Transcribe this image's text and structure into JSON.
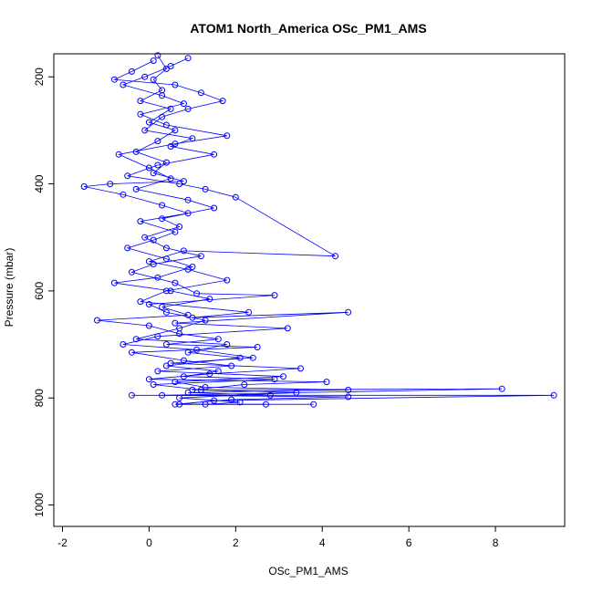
{
  "chart_data": {
    "type": "scatter",
    "title": "ATOM1 North_America OSc_PM1_AMS",
    "xlabel": "OSc_PM1_AMS",
    "ylabel": "Pressure (mbar)",
    "xlim": [
      -2.2,
      9.6
    ],
    "ylim": [
      1040,
      157
    ],
    "y_reversed": true,
    "xticks": [
      -2,
      0,
      2,
      4,
      6,
      8
    ],
    "yticks": [
      200,
      400,
      600,
      800,
      1000
    ],
    "grid": false,
    "legend": "none",
    "color": "#0000ff",
    "marker": "open-circle",
    "connected": true,
    "series": [
      {
        "points": [
          [
            0.2,
            160
          ],
          [
            0.4,
            185
          ],
          [
            0.1,
            205
          ],
          [
            0.3,
            225
          ],
          [
            -0.2,
            245
          ],
          [
            0.5,
            260
          ],
          [
            0.0,
            285
          ],
          [
            0.6,
            300
          ],
          [
            0.2,
            320
          ],
          [
            -0.3,
            340
          ],
          [
            0.4,
            360
          ],
          [
            0.1,
            380
          ],
          [
            0.8,
            395
          ],
          [
            -0.9,
            400
          ],
          [
            -1.5,
            405
          ],
          [
            -0.6,
            420
          ],
          [
            0.3,
            440
          ],
          [
            0.9,
            455
          ],
          [
            -0.2,
            470
          ],
          [
            0.6,
            490
          ],
          [
            0.1,
            505
          ],
          [
            -0.5,
            520
          ],
          [
            0.4,
            540
          ],
          [
            1.0,
            555
          ],
          [
            0.2,
            575
          ],
          [
            -0.8,
            585
          ],
          [
            0.5,
            600
          ],
          [
            1.4,
            615
          ],
          [
            0.3,
            630
          ],
          [
            0.9,
            645
          ],
          [
            -1.2,
            655
          ],
          [
            0.0,
            665
          ],
          [
            0.7,
            680
          ],
          [
            1.6,
            690
          ],
          [
            0.4,
            700
          ],
          [
            2.5,
            705
          ],
          [
            -0.4,
            715
          ],
          [
            0.8,
            730
          ],
          [
            1.9,
            740
          ],
          [
            0.2,
            750
          ],
          [
            3.1,
            760
          ],
          [
            0.6,
            770
          ],
          [
            1.3,
            780
          ],
          [
            4.6,
            785
          ],
          [
            0.9,
            790
          ],
          [
            2.8,
            795
          ],
          [
            -0.4,
            795
          ],
          [
            9.35,
            795
          ],
          [
            1.5,
            805
          ],
          [
            0.7,
            812
          ],
          [
            3.8,
            812
          ]
        ]
      },
      {
        "points": [
          [
            0.1,
            170
          ],
          [
            -0.4,
            190
          ],
          [
            -0.8,
            205
          ],
          [
            0.6,
            215
          ],
          [
            1.2,
            230
          ],
          [
            1.7,
            245
          ],
          [
            0.9,
            260
          ],
          [
            0.3,
            275
          ],
          [
            -0.1,
            300
          ],
          [
            1.0,
            315
          ],
          [
            0.5,
            330
          ],
          [
            1.5,
            345
          ],
          [
            0.2,
            365
          ],
          [
            -0.5,
            385
          ],
          [
            0.7,
            400
          ],
          [
            1.3,
            410
          ],
          [
            2.0,
            425
          ],
          [
            4.3,
            535
          ],
          [
            0.8,
            525
          ],
          [
            0.0,
            545
          ],
          [
            0.9,
            560
          ],
          [
            1.8,
            580
          ],
          [
            0.4,
            600
          ],
          [
            -0.2,
            620
          ],
          [
            2.3,
            640
          ],
          [
            1.0,
            650
          ],
          [
            4.6,
            640
          ],
          [
            0.6,
            660
          ],
          [
            3.2,
            670
          ],
          [
            0.2,
            685
          ],
          [
            -0.6,
            700
          ],
          [
            1.1,
            710
          ],
          [
            2.4,
            725
          ],
          [
            0.5,
            735
          ],
          [
            3.5,
            745
          ],
          [
            1.4,
            755
          ],
          [
            0.0,
            765
          ],
          [
            4.1,
            770
          ],
          [
            2.2,
            775
          ],
          [
            1.0,
            785
          ],
          [
            8.15,
            783
          ],
          [
            0.3,
            795
          ],
          [
            4.6,
            798
          ],
          [
            1.9,
            803
          ],
          [
            0.6,
            812
          ],
          [
            2.7,
            812
          ]
        ]
      },
      {
        "points": [
          [
            0.9,
            165
          ],
          [
            0.5,
            180
          ],
          [
            -0.1,
            200
          ],
          [
            -0.6,
            215
          ],
          [
            0.3,
            235
          ],
          [
            0.8,
            250
          ],
          [
            -0.2,
            270
          ],
          [
            0.4,
            290
          ],
          [
            1.8,
            310
          ],
          [
            0.6,
            325
          ],
          [
            -0.7,
            345
          ],
          [
            0.0,
            370
          ],
          [
            0.5,
            390
          ],
          [
            -0.3,
            410
          ],
          [
            0.9,
            430
          ],
          [
            1.5,
            445
          ],
          [
            0.3,
            465
          ],
          [
            0.7,
            480
          ],
          [
            -0.1,
            500
          ],
          [
            0.4,
            520
          ],
          [
            1.2,
            535
          ],
          [
            0.1,
            550
          ],
          [
            -0.4,
            565
          ],
          [
            0.6,
            585
          ],
          [
            1.1,
            605
          ],
          [
            2.9,
            608
          ],
          [
            0.0,
            625
          ],
          [
            0.4,
            640
          ],
          [
            1.3,
            655
          ],
          [
            0.7,
            670
          ],
          [
            -0.3,
            690
          ],
          [
            1.8,
            700
          ],
          [
            0.9,
            715
          ],
          [
            2.1,
            725
          ],
          [
            0.4,
            740
          ],
          [
            1.6,
            750
          ],
          [
            0.8,
            760
          ],
          [
            2.9,
            765
          ],
          [
            0.1,
            775
          ],
          [
            1.2,
            785
          ],
          [
            3.4,
            790
          ],
          [
            0.7,
            800
          ],
          [
            2.1,
            808
          ],
          [
            1.3,
            812
          ]
        ]
      }
    ]
  }
}
